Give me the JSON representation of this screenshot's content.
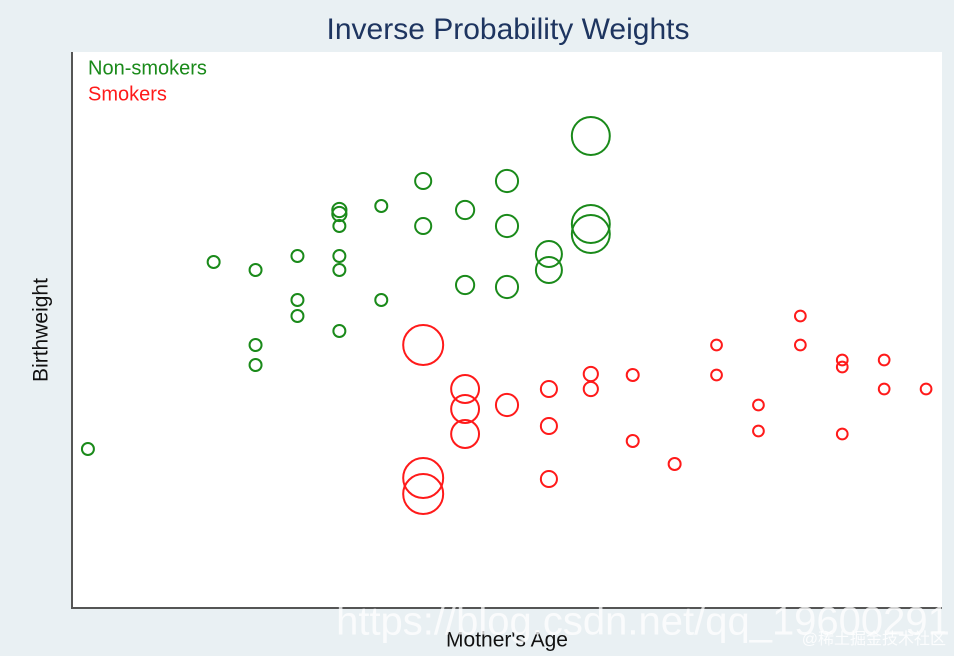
{
  "chart_data": {
    "type": "scatter",
    "title": "Inverse Probability Weights",
    "x_label": "Mother's Age",
    "y_label": "Birthweight",
    "legend": "top-left",
    "xlim": [
      -0.38,
      20.38
    ],
    "ylim": [
      0,
      5.56
    ],
    "series": [
      {
        "name": "Non-smokers",
        "color": "#1a8a1a",
        "x": [
          0,
          3,
          4,
          4,
          4,
          5,
          5,
          5,
          6,
          6,
          6,
          6,
          6,
          6,
          7,
          7,
          8,
          8,
          9,
          9,
          10,
          10,
          10,
          11,
          11,
          12,
          12,
          12
        ],
        "values": [
          1.59,
          3.46,
          3.38,
          2.63,
          2.43,
          3.52,
          3.08,
          2.92,
          3.98,
          3.94,
          3.82,
          3.52,
          3.38,
          2.77,
          4.02,
          3.08,
          4.27,
          3.82,
          3.98,
          3.23,
          4.27,
          3.82,
          3.21,
          3.54,
          3.38,
          4.72,
          3.84,
          3.74
        ],
        "sizes": [
          1,
          1,
          1,
          1,
          1,
          1,
          1,
          1,
          1.4,
          1.4,
          1,
          1,
          1,
          1,
          1,
          1,
          1.8,
          1.8,
          2.3,
          2.3,
          3.4,
          3.4,
          3.4,
          4.7,
          4.7,
          10,
          10,
          10
        ]
      },
      {
        "name": "Smokers",
        "color": "#ff1a1a",
        "x": [
          8,
          9,
          9,
          9,
          8,
          8,
          10,
          11,
          11,
          11,
          12,
          12,
          13,
          13,
          14,
          15,
          15,
          16,
          16,
          17,
          17,
          18,
          18,
          18,
          19,
          19,
          20
        ],
        "values": [
          2.63,
          2.19,
          1.99,
          1.74,
          1.3,
          1.14,
          2.03,
          2.19,
          1.82,
          1.29,
          2.34,
          2.19,
          2.33,
          1.67,
          1.44,
          2.63,
          2.33,
          2.03,
          1.77,
          2.92,
          2.63,
          2.48,
          2.41,
          1.74,
          2.48,
          2.19,
          2.19
        ],
        "sizes": [
          11.1,
          5.4,
          5.4,
          5.4,
          11.1,
          11.1,
          3.4,
          1.8,
          1.8,
          1.8,
          1.4,
          1.4,
          1,
          1,
          1,
          0.8,
          0.8,
          0.8,
          0.8,
          0.8,
          0.8,
          0.8,
          0.8,
          0.8,
          0.8,
          0.8,
          0.8
        ]
      }
    ]
  },
  "watermarks": [
    "https://blog.csdn.net/qq_19600291",
    "@稀土掘金技术社区"
  ]
}
